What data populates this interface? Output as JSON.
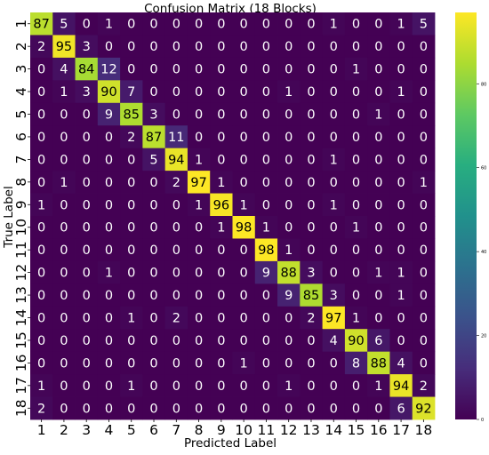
{
  "chart_data": {
    "type": "heatmap",
    "title": "Confusion Matrix (18 Blocks)",
    "xlabel": "Predicted Label",
    "ylabel": "True Label",
    "x_categories": [
      "1",
      "2",
      "3",
      "4",
      "5",
      "6",
      "7",
      "8",
      "9",
      "10",
      "11",
      "12",
      "13",
      "14",
      "15",
      "16",
      "17",
      "18"
    ],
    "y_categories": [
      "1",
      "2",
      "3",
      "4",
      "5",
      "6",
      "7",
      "8",
      "9",
      "10",
      "11",
      "12",
      "13",
      "14",
      "15",
      "16",
      "17",
      "18"
    ],
    "colormap": "viridis",
    "color_range": [
      0,
      97
    ],
    "colorbar_ticks": [
      "0",
      "20",
      "40",
      "60",
      "80"
    ],
    "matrix": [
      [
        87,
        5,
        0,
        1,
        0,
        0,
        0,
        0,
        0,
        0,
        0,
        0,
        0,
        1,
        0,
        0,
        1,
        5
      ],
      [
        2,
        95,
        3,
        0,
        0,
        0,
        0,
        0,
        0,
        0,
        0,
        0,
        0,
        0,
        0,
        0,
        0,
        0
      ],
      [
        0,
        4,
        84,
        12,
        0,
        0,
        0,
        0,
        0,
        0,
        0,
        0,
        0,
        0,
        1,
        0,
        0,
        0
      ],
      [
        0,
        1,
        3,
        90,
        7,
        0,
        0,
        0,
        0,
        0,
        0,
        1,
        0,
        0,
        0,
        0,
        1,
        0
      ],
      [
        0,
        0,
        0,
        9,
        85,
        3,
        0,
        0,
        0,
        0,
        0,
        0,
        0,
        0,
        0,
        1,
        0,
        0
      ],
      [
        0,
        0,
        0,
        0,
        2,
        87,
        11,
        0,
        0,
        0,
        0,
        0,
        0,
        0,
        0,
        0,
        0,
        0
      ],
      [
        0,
        0,
        0,
        0,
        0,
        5,
        94,
        1,
        0,
        0,
        0,
        0,
        0,
        1,
        0,
        0,
        0,
        0
      ],
      [
        0,
        1,
        0,
        0,
        0,
        0,
        2,
        97,
        1,
        0,
        0,
        0,
        0,
        0,
        0,
        0,
        0,
        1
      ],
      [
        1,
        0,
        0,
        0,
        0,
        0,
        0,
        1,
        96,
        1,
        0,
        0,
        0,
        1,
        0,
        0,
        0,
        0
      ],
      [
        0,
        0,
        0,
        0,
        0,
        0,
        0,
        0,
        1,
        98,
        1,
        0,
        0,
        0,
        1,
        0,
        0,
        0
      ],
      [
        0,
        0,
        0,
        0,
        0,
        0,
        0,
        0,
        0,
        0,
        98,
        1,
        0,
        0,
        0,
        0,
        0,
        0
      ],
      [
        0,
        0,
        0,
        1,
        0,
        0,
        0,
        0,
        0,
        0,
        9,
        88,
        3,
        0,
        0,
        1,
        1,
        0
      ],
      [
        0,
        0,
        0,
        0,
        0,
        0,
        0,
        0,
        0,
        0,
        0,
        9,
        85,
        3,
        0,
        0,
        1,
        0
      ],
      [
        0,
        0,
        0,
        0,
        1,
        0,
        2,
        0,
        0,
        0,
        0,
        0,
        2,
        97,
        1,
        0,
        0,
        0
      ],
      [
        0,
        0,
        0,
        0,
        0,
        0,
        0,
        0,
        0,
        0,
        0,
        0,
        0,
        4,
        90,
        6,
        0,
        0
      ],
      [
        0,
        0,
        0,
        0,
        0,
        0,
        0,
        0,
        0,
        1,
        0,
        0,
        0,
        0,
        8,
        88,
        4,
        0
      ],
      [
        1,
        0,
        0,
        0,
        1,
        0,
        0,
        0,
        0,
        0,
        0,
        1,
        0,
        0,
        0,
        1,
        94,
        2
      ],
      [
        2,
        0,
        0,
        0,
        0,
        0,
        0,
        0,
        0,
        0,
        0,
        0,
        0,
        0,
        0,
        0,
        6,
        92
      ]
    ]
  }
}
